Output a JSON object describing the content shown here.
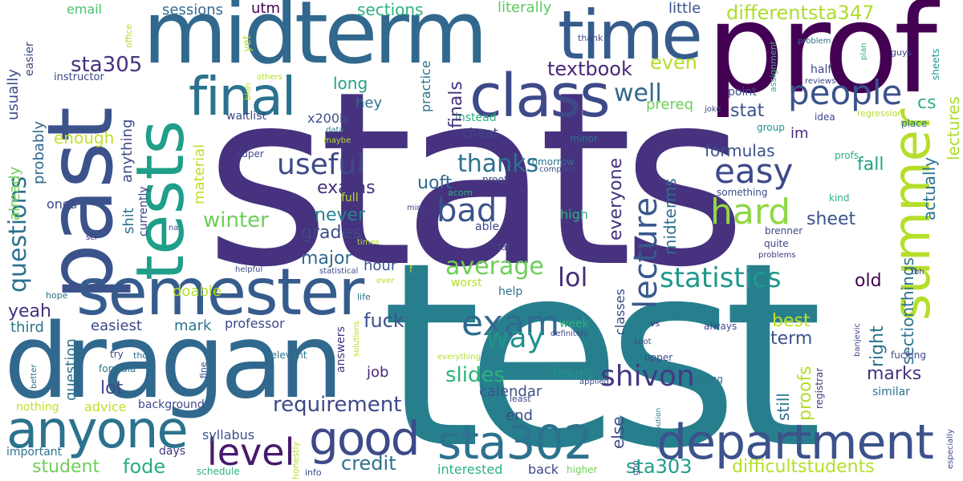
{
  "words": [
    {
      "text": "stats",
      "color": "#46327e"
    },
    {
      "text": "test",
      "color": "#277f8e"
    },
    {
      "text": "prof",
      "color": "#440154"
    },
    {
      "text": "midterm",
      "color": "#31688e"
    },
    {
      "text": "past",
      "color": "#3b528b"
    },
    {
      "text": "dragan",
      "color": "#31688e"
    },
    {
      "text": "time",
      "color": "#365c8d"
    },
    {
      "text": "tests",
      "color": "#1f9e89"
    },
    {
      "text": "semester",
      "color": "#365c8d"
    },
    {
      "text": "class",
      "color": "#3e4989"
    },
    {
      "text": "final",
      "color": "#2c728e"
    },
    {
      "text": "department",
      "color": "#3b528b"
    },
    {
      "text": "anyone",
      "color": "#2c728e"
    },
    {
      "text": "sta302",
      "color": "#2c728e"
    },
    {
      "text": "good",
      "color": "#3e4989"
    },
    {
      "text": "summer",
      "color": "#b5de2b"
    },
    {
      "text": "level",
      "color": "#481a6c"
    },
    {
      "text": "exam",
      "color": "#306a8e"
    },
    {
      "text": "people",
      "color": "#3b528b"
    },
    {
      "text": "hard",
      "color": "#8fd744"
    },
    {
      "text": "easy",
      "color": "#3e4989"
    },
    {
      "text": "bad",
      "color": "#3b528b"
    },
    {
      "text": "lecture",
      "color": "#38598c"
    },
    {
      "text": "way",
      "color": "#20928c"
    },
    {
      "text": "shivon",
      "color": "#443983"
    },
    {
      "text": "statistics",
      "color": "#1f988b"
    },
    {
      "text": "average",
      "color": "#6ece58"
    },
    {
      "text": "useful",
      "color": "#3e4989"
    },
    {
      "text": "lol",
      "color": "#472d7b"
    },
    {
      "text": "questions",
      "color": "#2c728e"
    },
    {
      "text": "textbook",
      "color": "#482878"
    },
    {
      "text": "differentsta347",
      "color": "#addc30"
    },
    {
      "text": "well",
      "color": "#31688e"
    },
    {
      "text": "even",
      "color": "#b5de2b"
    },
    {
      "text": "sta305",
      "color": "#46327e"
    },
    {
      "text": "thanks",
      "color": "#2c728e"
    },
    {
      "text": "fuck",
      "color": "#3b528b"
    },
    {
      "text": "winter",
      "color": "#6ece58"
    },
    {
      "text": "requirement",
      "color": "#3e4989"
    },
    {
      "text": "slides",
      "color": "#2db27d"
    },
    {
      "text": "difficultstudents",
      "color": "#b5de2b"
    },
    {
      "text": "sta303",
      "color": "#1f9e89"
    },
    {
      "text": "credit",
      "color": "#2c728e"
    },
    {
      "text": "student",
      "color": "#6ece58"
    },
    {
      "text": "fode",
      "color": "#26ad81"
    },
    {
      "text": "sessions",
      "color": "#31688e"
    },
    {
      "text": "sections",
      "color": "#2db27d"
    },
    {
      "text": "literally",
      "color": "#5ec962"
    },
    {
      "text": "email",
      "color": "#4ac16d"
    },
    {
      "text": "utm",
      "color": "#440154"
    },
    {
      "text": "little",
      "color": "#3b528b"
    },
    {
      "text": "major",
      "color": "#31688e"
    },
    {
      "text": "hour",
      "color": "#3b528b"
    },
    {
      "text": "exams",
      "color": "#46327e"
    },
    {
      "text": "never",
      "color": "#26828e"
    },
    {
      "text": "grades",
      "color": "#3e4989"
    },
    {
      "text": "uoft",
      "color": "#31688e"
    },
    {
      "text": "sheet",
      "color": "#3b528b"
    },
    {
      "text": "formulas",
      "color": "#3b528b"
    },
    {
      "text": "stat",
      "color": "#3b528b"
    },
    {
      "text": "fall",
      "color": "#20a386"
    },
    {
      "text": "old",
      "color": "#440154"
    },
    {
      "text": "best",
      "color": "#c2df23"
    },
    {
      "text": "term",
      "color": "#3b528b"
    },
    {
      "text": "marks",
      "color": "#46327e"
    },
    {
      "text": "lot",
      "color": "#3e4989"
    },
    {
      "text": "calendar",
      "color": "#3b528b"
    },
    {
      "text": "hours",
      "color": "#20928c"
    },
    {
      "text": "end",
      "color": "#3e4989"
    },
    {
      "text": "job",
      "color": "#482878"
    },
    {
      "text": "mark",
      "color": "#2c728e"
    },
    {
      "text": "easiest",
      "color": "#3e4989"
    },
    {
      "text": "professor",
      "color": "#3e4989"
    },
    {
      "text": "yeah",
      "color": "#46327e"
    },
    {
      "text": "third",
      "color": "#2c728e"
    },
    {
      "text": "question",
      "color": "#2c728e"
    },
    {
      "text": "advice",
      "color": "#bddf26"
    },
    {
      "text": "background",
      "color": "#3e4989"
    },
    {
      "text": "syllabus",
      "color": "#3b528b"
    },
    {
      "text": "days",
      "color": "#46327e"
    },
    {
      "text": "important",
      "color": "#2c728e"
    },
    {
      "text": "nothing",
      "color": "#c2df23"
    },
    {
      "text": "schedule",
      "color": "#2db27d"
    },
    {
      "text": "interested",
      "color": "#2db27d"
    },
    {
      "text": "back",
      "color": "#3e4989"
    },
    {
      "text": "higher",
      "color": "#73d056"
    },
    {
      "text": "info",
      "color": "#3e4989"
    },
    {
      "text": "doable",
      "color": "#b5de2b"
    },
    {
      "text": "enough",
      "color": "#c2df23"
    },
    {
      "text": "long",
      "color": "#20a386"
    },
    {
      "text": "hey",
      "color": "#2c728e"
    },
    {
      "text": "x200b",
      "color": "#3b528b"
    },
    {
      "text": "waitlist",
      "color": "#3e4989"
    },
    {
      "text": "cheat",
      "color": "#3e4989"
    },
    {
      "text": "instead",
      "color": "#2db27d"
    },
    {
      "text": "finals",
      "color": "#46327e"
    },
    {
      "text": "practice",
      "color": "#2c728e"
    },
    {
      "text": "prereq",
      "color": "#6ece58"
    },
    {
      "text": "everyone",
      "color": "#46327e"
    },
    {
      "text": "midterms",
      "color": "#2c728e"
    },
    {
      "text": "im",
      "color": "#482878"
    },
    {
      "text": "cs",
      "color": "#2db27d"
    },
    {
      "text": "lectures",
      "color": "#addc30"
    },
    {
      "text": "actually",
      "color": "#2c728e"
    },
    {
      "text": "sectionthings",
      "color": "#2c728e"
    },
    {
      "text": "right",
      "color": "#2c728e"
    },
    {
      "text": "still",
      "color": "#2c728e"
    },
    {
      "text": "proofs",
      "color": "#b5de2b"
    },
    {
      "text": "else",
      "color": "#3e4989"
    },
    {
      "text": "classes",
      "color": "#3e4989"
    },
    {
      "text": "usually",
      "color": "#3e4989"
    },
    {
      "text": "probably",
      "color": "#31688e"
    },
    {
      "text": "already",
      "color": "#6ece58"
    },
    {
      "text": "ones",
      "color": "#3e4989"
    },
    {
      "text": "anything",
      "color": "#3e4989"
    },
    {
      "text": "shit",
      "color": "#2c728e"
    },
    {
      "text": "currently",
      "color": "#3e4989"
    },
    {
      "text": "material",
      "color": "#bddf26"
    },
    {
      "text": "easier",
      "color": "#3e4989"
    },
    {
      "text": "instructor",
      "color": "#3e4989"
    },
    {
      "text": "office",
      "color": "#b5de2b"
    },
    {
      "text": "yet",
      "color": "#b5de2b"
    },
    {
      "text": "blah",
      "color": "#b5de2b"
    },
    {
      "text": "others",
      "color": "#b5de2b"
    },
    {
      "text": "thank",
      "color": "#3e4989"
    },
    {
      "text": "problem",
      "color": "#2c728e"
    },
    {
      "text": "plan",
      "color": "#2db27d"
    },
    {
      "text": "guys",
      "color": "#3e4989"
    },
    {
      "text": "sheets",
      "color": "#1f988b"
    },
    {
      "text": "half",
      "color": "#3e4989"
    },
    {
      "text": "reviews",
      "color": "#3e4989"
    },
    {
      "text": "assignment",
      "color": "#2db27d"
    },
    {
      "text": "point",
      "color": "#3e4989"
    },
    {
      "text": "regression",
      "color": "#b5de2b"
    },
    {
      "text": "place",
      "color": "#2c728e"
    },
    {
      "text": "idea",
      "color": "#3e4989"
    },
    {
      "text": "group",
      "color": "#20928c"
    },
    {
      "text": "joke",
      "color": "#3e4989"
    },
    {
      "text": "minor",
      "color": "#2c728e"
    },
    {
      "text": "data",
      "color": "#2c728e"
    },
    {
      "text": "maybe",
      "color": "#b5de2b"
    },
    {
      "text": "super",
      "color": "#3e4989"
    },
    {
      "text": "tomorrow",
      "color": "#2c728e"
    },
    {
      "text": "complain",
      "color": "#3e4989"
    },
    {
      "text": "proof",
      "color": "#3e4989"
    },
    {
      "text": "acorn",
      "color": "#2db27d"
    },
    {
      "text": "full",
      "color": "#b5de2b"
    },
    {
      "text": "mins",
      "color": "#3e4989"
    },
    {
      "text": "na",
      "color": "#3e4989"
    },
    {
      "text": "sci",
      "color": "#46327e"
    },
    {
      "text": "able",
      "color": "#3e4989"
    },
    {
      "text": "far",
      "color": "#3e4989"
    },
    {
      "text": "times",
      "color": "#b5de2b"
    },
    {
      "text": "high",
      "color": "#2db27d"
    },
    {
      "text": "bird",
      "color": "#46327e"
    },
    {
      "text": "profs",
      "color": "#2db27d"
    },
    {
      "text": "kind",
      "color": "#2db27d"
    },
    {
      "text": "something",
      "color": "#3e4989"
    },
    {
      "text": "brenner",
      "color": "#3e4989"
    },
    {
      "text": "quite",
      "color": "#3e4989"
    },
    {
      "text": "problems",
      "color": "#46327e"
    },
    {
      "text": "tbh",
      "color": "#3e4989"
    },
    {
      "text": "helpful",
      "color": "#3e4989"
    },
    {
      "text": "statistical",
      "color": "#3e4989"
    },
    {
      "text": "ever",
      "color": "#b5de2b"
    },
    {
      "text": "hope",
      "color": "#2c728e"
    },
    {
      "text": "life",
      "color": "#2c728e"
    },
    {
      "text": "worst",
      "color": "#b5de2b"
    },
    {
      "text": "help",
      "color": "#2c728e"
    },
    {
      "text": "week",
      "color": "#2db27d"
    },
    {
      "text": "definitely",
      "color": "#3e4989"
    },
    {
      "text": "vs",
      "color": "#46327e"
    },
    {
      "text": "always",
      "color": "#3e4989"
    },
    {
      "text": "spot",
      "color": "#3e4989"
    },
    {
      "text": "upper",
      "color": "#3e4989"
    },
    {
      "text": "banjevic",
      "color": "#3e4989"
    },
    {
      "text": "fucking",
      "color": "#3e4989"
    },
    {
      "text": "similar",
      "color": "#2c728e"
    },
    {
      "text": "registrar",
      "color": "#46327e"
    },
    {
      "text": "especially",
      "color": "#3e4989"
    },
    {
      "text": "wrong",
      "color": "#2c728e"
    },
    {
      "text": "applied",
      "color": "#3e4989"
    },
    {
      "text": "least",
      "color": "#3e4989"
    },
    {
      "text": "distribution",
      "color": "#2c728e"
    },
    {
      "text": "gon",
      "color": "#3e4989"
    },
    {
      "text": "everything",
      "color": "#b5de2b"
    },
    {
      "text": "answers",
      "color": "#46327e"
    },
    {
      "text": "solutions",
      "color": "#b5de2b"
    },
    {
      "text": "honestly",
      "color": "#b5de2b"
    },
    {
      "text": "relevant",
      "color": "#2c728e"
    },
    {
      "text": "try",
      "color": "#3e4989"
    },
    {
      "text": "tho",
      "color": "#2c728e"
    },
    {
      "text": "formula",
      "color": "#2c728e"
    },
    {
      "text": "better",
      "color": "#2c728e"
    },
    {
      "text": "fine",
      "color": "#3e4989"
    },
    {
      "text": "f",
      "color": "#b5de2b"
    }
  ]
}
